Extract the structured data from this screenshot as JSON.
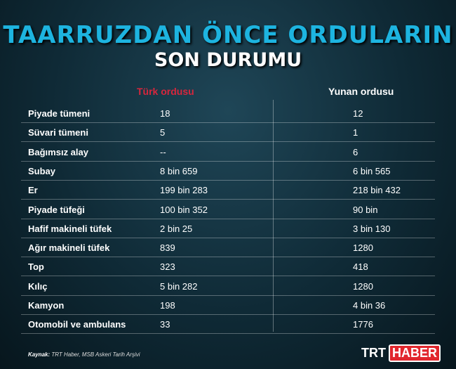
{
  "title": "TAARRUZDAN ÖNCE ORDULARIN",
  "subtitle": "SON DURUMU",
  "columns": {
    "turk": "Türk ordusu",
    "yunan": "Yunan ordusu"
  },
  "colors": {
    "title": "#1db4e0",
    "turk": "#d7263d",
    "brand": "#e1262d"
  },
  "rows": [
    {
      "label": "Piyade tümeni",
      "turk": "18",
      "yunan": "12"
    },
    {
      "label": "Süvari tümeni",
      "turk": "5",
      "yunan": "1"
    },
    {
      "label": "Bağımsız alay",
      "turk": "--",
      "yunan": "6"
    },
    {
      "label": "Subay",
      "turk": "8 bin 659",
      "yunan": "6 bin 565"
    },
    {
      "label": "Er",
      "turk": "199 bin 283",
      "yunan": "218 bin 432"
    },
    {
      "label": "Piyade tüfeği",
      "turk": "100 bin 352",
      "yunan": "90 bin"
    },
    {
      "label": "Hafif makineli tüfek",
      "turk": "2 bin 25",
      "yunan": "3 bin 130"
    },
    {
      "label": "Ağır makineli tüfek",
      "turk": "839",
      "yunan": "1280"
    },
    {
      "label": "Top",
      "turk": "323",
      "yunan": "418"
    },
    {
      "label": "Kılıç",
      "turk": "5 bin 282",
      "yunan": "1280"
    },
    {
      "label": "Kamyon",
      "turk": "198",
      "yunan": "4 bin 36"
    },
    {
      "label": "Otomobil ve ambulans",
      "turk": "33",
      "yunan": "1776"
    }
  ],
  "source": {
    "label": "Kaynak:",
    "text": "TRT Haber, MSB Askeri Tarih Arşivi"
  },
  "logo": {
    "part1": "TRT",
    "part2": "HABER"
  }
}
